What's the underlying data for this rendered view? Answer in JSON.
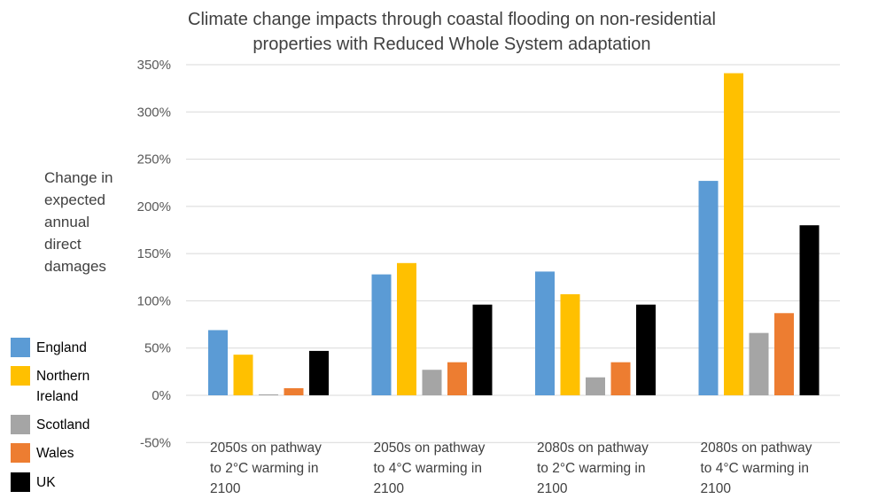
{
  "chart_data": {
    "type": "bar",
    "title_lines": [
      "Climate change impacts through coastal flooding on non-residential",
      "properties with Reduced Whole System adaptation"
    ],
    "ylabel_lines": [
      "Change in",
      "expected",
      "annual",
      "direct",
      "damages"
    ],
    "xlabel": "",
    "ylim": [
      -50,
      350
    ],
    "yticks": [
      -50,
      0,
      50,
      100,
      150,
      200,
      250,
      300,
      350
    ],
    "ytick_labels": [
      "-50%",
      "0%",
      "50%",
      "100%",
      "150%",
      "200%",
      "250%",
      "300%",
      "350%"
    ],
    "grid": true,
    "legend_position": "left",
    "categories": [
      [
        "2050s on pathway",
        "to 2°C warming in",
        "2100"
      ],
      [
        "2050s on pathway",
        "to 4°C warming in",
        "2100"
      ],
      [
        "2080s on pathway",
        "to 2°C warming in",
        "2100"
      ],
      [
        "2080s on pathway",
        "to 4°C warming in",
        "2100"
      ]
    ],
    "series": [
      {
        "name": "England",
        "label_lines": [
          "England"
        ],
        "color": "#5b9bd5",
        "values": [
          69,
          128,
          131,
          227
        ]
      },
      {
        "name": "Northern Ireland",
        "label_lines": [
          "Northern",
          "Ireland"
        ],
        "color": "#ffc000",
        "values": [
          43,
          140,
          107,
          341
        ]
      },
      {
        "name": "Scotland",
        "label_lines": [
          "Scotland"
        ],
        "color": "#a5a5a5",
        "values": [
          1,
          27,
          19,
          66
        ]
      },
      {
        "name": "Wales",
        "label_lines": [
          "Wales"
        ],
        "color": "#ed7d31",
        "values": [
          7.5,
          35,
          35,
          87
        ]
      },
      {
        "name": "UK",
        "label_lines": [
          "UK"
        ],
        "color": "#000000",
        "values": [
          47,
          96,
          96,
          180
        ]
      }
    ]
  }
}
